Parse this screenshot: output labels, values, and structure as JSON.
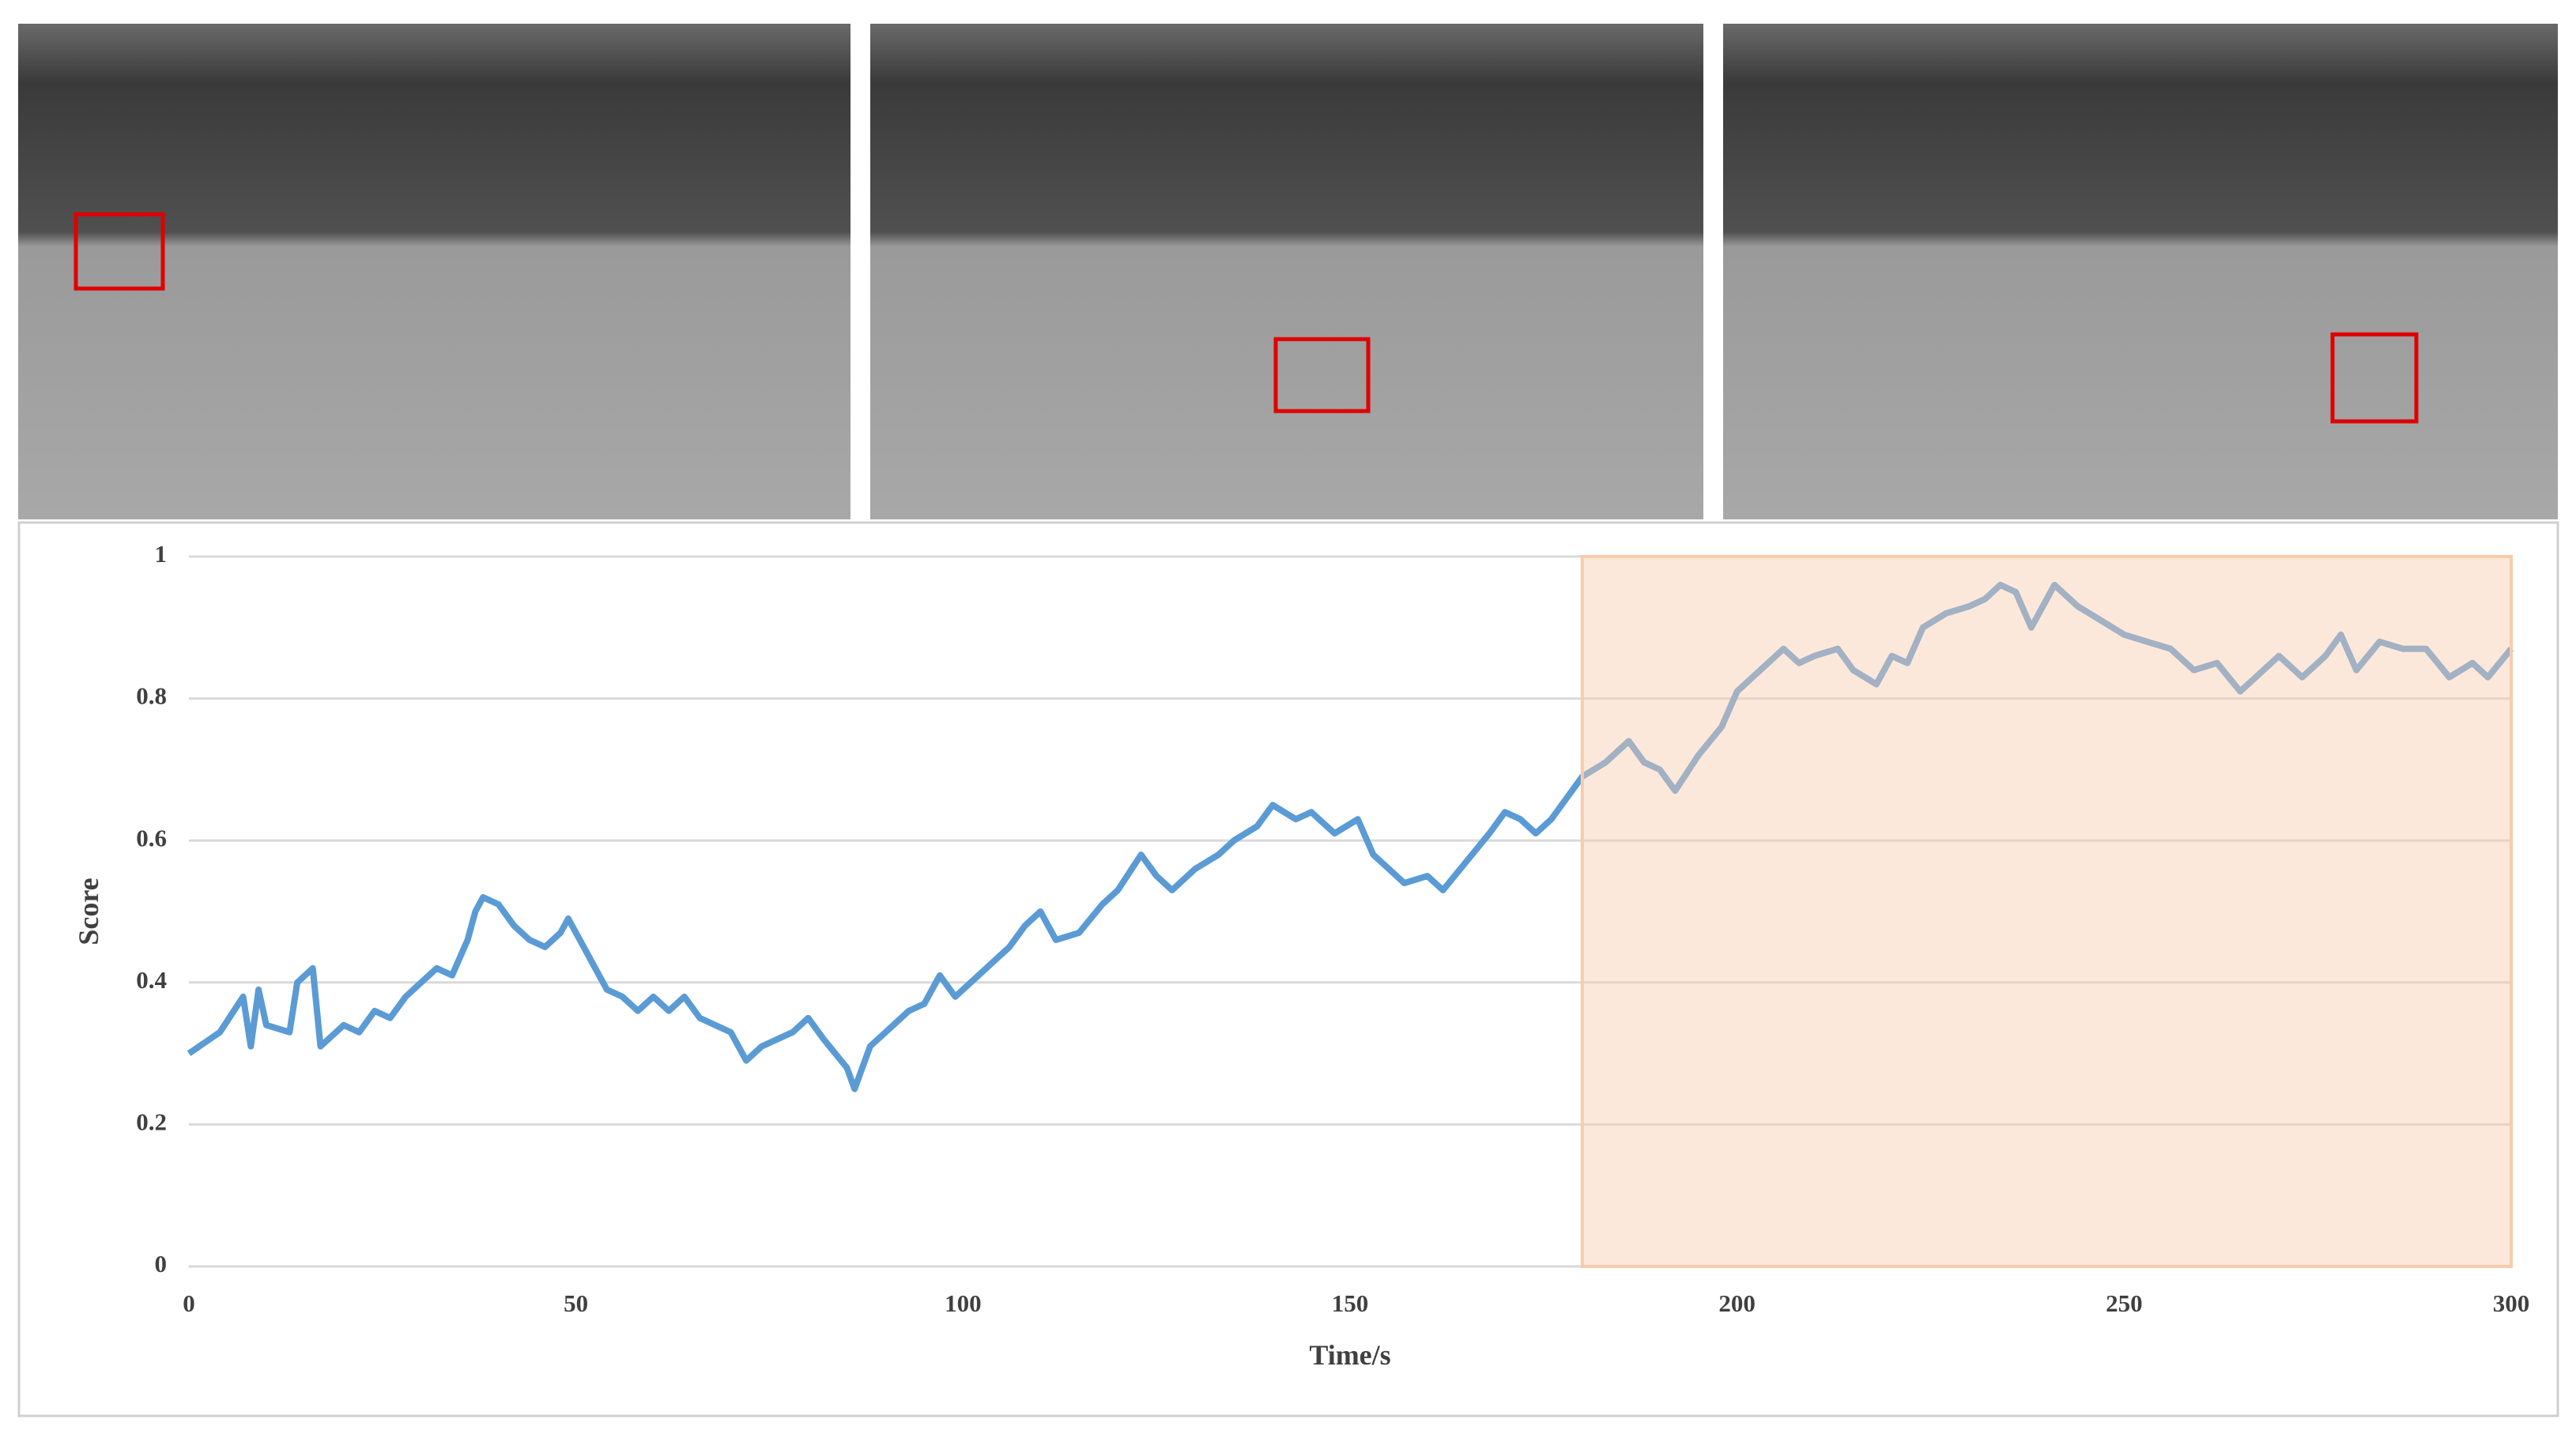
{
  "chart_data": {
    "type": "line",
    "x_label": "Time/s",
    "y_label": "Score",
    "x": [
      0,
      4,
      7,
      8,
      9,
      10,
      13,
      14,
      16,
      17,
      20,
      22,
      24,
      26,
      28,
      30,
      32,
      34,
      36,
      37,
      38,
      40,
      42,
      44,
      46,
      48,
      49,
      52,
      54,
      56,
      58,
      60,
      62,
      64,
      66,
      68,
      70,
      72,
      74,
      76,
      78,
      80,
      82,
      85,
      86,
      88,
      90,
      93,
      95,
      97,
      99,
      101,
      103,
      106,
      108,
      110,
      112,
      115,
      118,
      120,
      123,
      125,
      127,
      130,
      133,
      135,
      138,
      140,
      143,
      145,
      148,
      151,
      153,
      155,
      157,
      160,
      162,
      165,
      168,
      170,
      172,
      174,
      176,
      178,
      180,
      183,
      186,
      188,
      190,
      192,
      195,
      198,
      200,
      203,
      206,
      208,
      210,
      213,
      215,
      218,
      220,
      222,
      224,
      227,
      230,
      232,
      234,
      236,
      238,
      241,
      244,
      247,
      250,
      253,
      256,
      259,
      262,
      265,
      268,
      270,
      273,
      276,
      278,
      280,
      283,
      286,
      289,
      292,
      295,
      297,
      300
    ],
    "series": [
      {
        "color": "#5b9bd5",
        "values": [
          0.3,
          0.33,
          0.38,
          0.31,
          0.39,
          0.34,
          0.33,
          0.4,
          0.42,
          0.31,
          0.34,
          0.33,
          0.36,
          0.35,
          0.38,
          0.4,
          0.42,
          0.41,
          0.46,
          0.5,
          0.52,
          0.51,
          0.48,
          0.46,
          0.45,
          0.47,
          0.49,
          0.43,
          0.39,
          0.38,
          0.36,
          0.38,
          0.36,
          0.38,
          0.35,
          0.34,
          0.33,
          0.29,
          0.31,
          0.32,
          0.33,
          0.35,
          0.32,
          0.28,
          0.25,
          0.31,
          0.33,
          0.36,
          0.37,
          0.41,
          0.38,
          0.4,
          0.42,
          0.45,
          0.48,
          0.5,
          0.46,
          0.47,
          0.51,
          0.53,
          0.58,
          0.55,
          0.53,
          0.56,
          0.58,
          0.6,
          0.62,
          0.65,
          0.63,
          0.64,
          0.61,
          0.63,
          0.58,
          0.56,
          0.54,
          0.55,
          0.53,
          0.57,
          0.61,
          0.64,
          0.63,
          0.61,
          0.63,
          0.66,
          0.69,
          0.71,
          0.74,
          0.71,
          0.7,
          0.67,
          0.72,
          0.76,
          0.81,
          0.84,
          0.87,
          0.85,
          0.86,
          0.87,
          0.84,
          0.82,
          0.86,
          0.85,
          0.9,
          0.92,
          0.93,
          0.94,
          0.96,
          0.95,
          0.9,
          0.96,
          0.93,
          0.91,
          0.89,
          0.88,
          0.87,
          0.84,
          0.85,
          0.81,
          0.84,
          0.86,
          0.83,
          0.86,
          0.89,
          0.84,
          0.88,
          0.87,
          0.87,
          0.83,
          0.85,
          0.83,
          0.87
        ]
      }
    ],
    "xlim": [
      0,
      300
    ],
    "xticks": [
      0,
      50,
      100,
      150,
      200,
      250,
      300
    ],
    "ylim": [
      0,
      1
    ],
    "yticks": [
      0,
      0.2,
      0.4,
      0.6,
      0.8,
      1
    ],
    "grid": true,
    "highlight_x": [
      180,
      300
    ],
    "highlight_color": "#f8cbad"
  }
}
